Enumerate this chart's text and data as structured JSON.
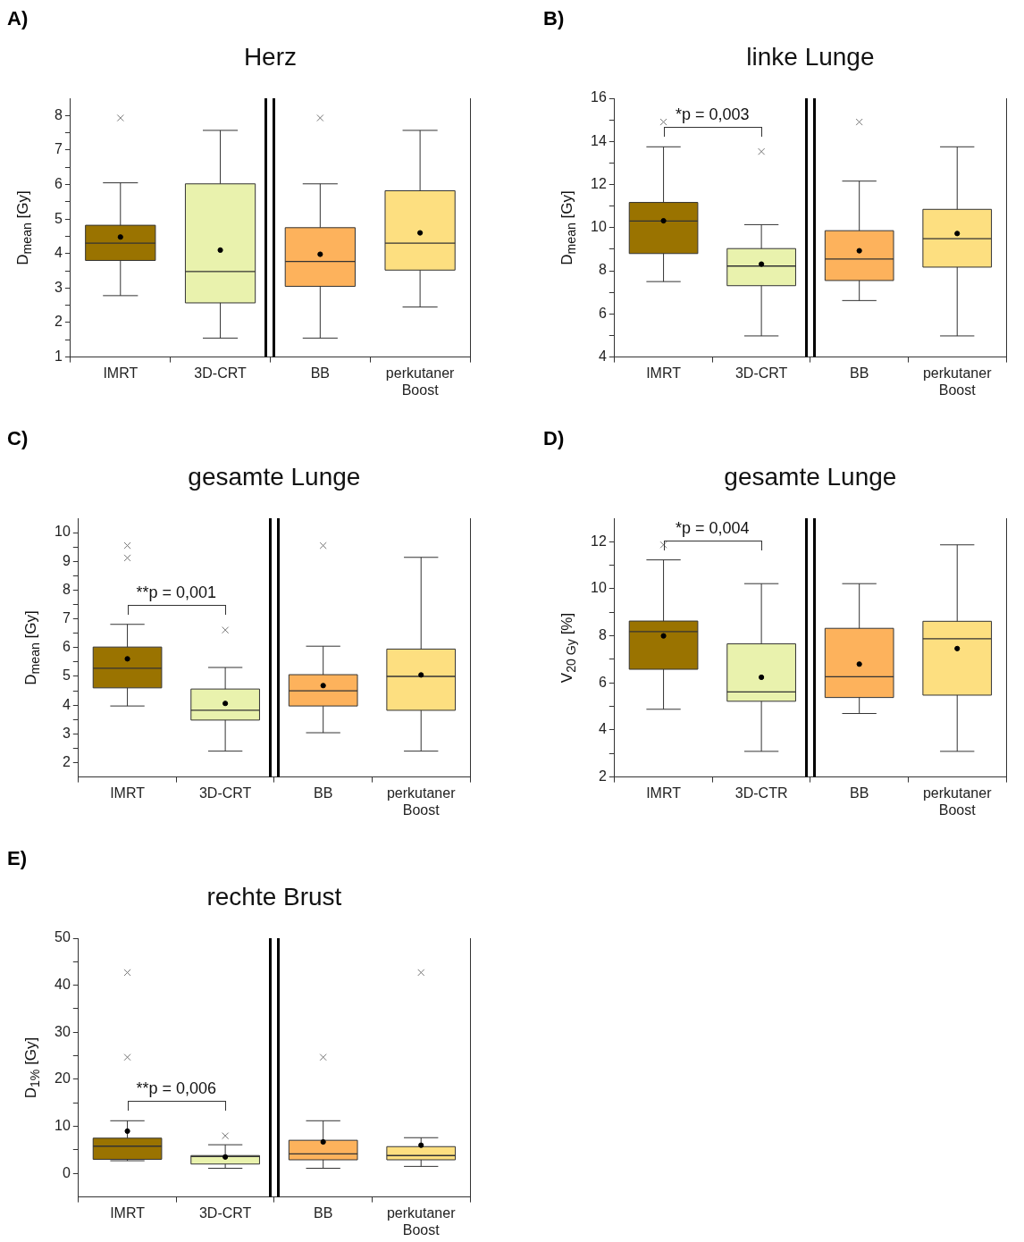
{
  "chart_data": [
    {
      "type": "box",
      "title": "Herz",
      "ylabel": "D$_{mean}$ [Gy]",
      "annotations": [
        "A)"
      ],
      "categories": [
        "IMRT",
        "3D-CRT",
        "BB",
        "perkutaner Boost"
      ],
      "colors": [
        "#9a7300",
        "#e9f2ad",
        "#fdb25c",
        "#fddf80"
      ],
      "boxes": [
        {
          "low": 2.78,
          "q1": 3.8,
          "median": 4.3,
          "q3": 4.82,
          "high": 6.05,
          "mean": 4.48,
          "outliers": [
            7.93
          ]
        },
        {
          "low": 1.55,
          "q1": 2.57,
          "median": 3.48,
          "q3": 6.02,
          "high": 7.57,
          "mean": 4.1
        },
        {
          "low": 1.55,
          "q1": 3.05,
          "median": 3.77,
          "q3": 4.75,
          "high": 6.02,
          "mean": 3.98,
          "outliers": [
            7.93
          ]
        },
        {
          "low": 2.45,
          "q1": 3.52,
          "median": 4.3,
          "q3": 5.82,
          "high": 7.57,
          "mean": 4.6
        }
      ],
      "ylim": [
        1,
        8.5
      ],
      "yticks": [
        1,
        {
          "value": 1.5,
          "label": null
        },
        2,
        {
          "value": 2.5,
          "label": null
        },
        3,
        {
          "value": 3.5,
          "label": null
        },
        4,
        {
          "value": 4.5,
          "label": null
        },
        5,
        {
          "value": 5.5,
          "label": null
        },
        6,
        {
          "value": 6.5,
          "label": null
        },
        7,
        {
          "value": 7.5,
          "label": null
        },
        8
      ]
    },
    {
      "type": "box",
      "title": "linke Lunge",
      "ylabel": "D$_{mean}$ [Gy]",
      "annotations": [
        "B)",
        "*p = 0,003"
      ],
      "categories": [
        "IMRT",
        "3D-CRT",
        "BB",
        "perkutaner Boost"
      ],
      "colors": [
        "#9a7300",
        "#e9f2ad",
        "#fdb25c",
        "#fddf80"
      ],
      "boxes": [
        {
          "low": 7.5,
          "q1": 8.8,
          "median": 10.31,
          "q3": 11.17,
          "high": 13.75,
          "mean": 10.32,
          "outliers": [
            14.9
          ]
        },
        {
          "low": 4.98,
          "q1": 7.31,
          "median": 8.22,
          "q3": 9.03,
          "high": 10.14,
          "mean": 8.31,
          "outliers": [
            13.53
          ]
        },
        {
          "low": 6.62,
          "q1": 7.55,
          "median": 8.55,
          "q3": 9.86,
          "high": 12.16,
          "mean": 8.93,
          "outliers": [
            14.9
          ]
        },
        {
          "low": 4.98,
          "q1": 8.17,
          "median": 9.49,
          "q3": 10.85,
          "high": 13.75,
          "mean": 9.73
        }
      ],
      "ylim": [
        4,
        16
      ],
      "yticks": [
        4,
        {
          "value": 5,
          "label": null
        },
        6,
        {
          "value": 7,
          "label": null
        },
        8,
        {
          "value": 9,
          "label": null
        },
        10,
        {
          "value": 11,
          "label": null
        },
        12,
        {
          "value": 13,
          "label": null
        },
        14,
        {
          "value": 15,
          "label": null
        },
        16
      ]
    },
    {
      "type": "box",
      "title": "gesamte Lunge",
      "ylabel": "D$_{mean}$ [Gy]",
      "annotations": [
        "C)",
        "**p = 0,001"
      ],
      "categories": [
        "IMRT",
        "3D-CRT",
        "BB",
        "perkutaner Boost"
      ],
      "colors": [
        "#9a7300",
        "#e9f2ad",
        "#fdb25c",
        "#fddf80"
      ],
      "boxes": [
        {
          "low": 3.97,
          "q1": 4.6,
          "median": 5.28,
          "q3": 6.02,
          "high": 6.81,
          "mean": 5.61,
          "outliers": [
            9.55,
            9.12
          ]
        },
        {
          "low": 2.4,
          "q1": 3.48,
          "median": 3.82,
          "q3": 4.56,
          "high": 5.31,
          "mean": 4.06,
          "outliers": [
            6.61
          ]
        },
        {
          "low": 3.04,
          "q1": 3.97,
          "median": 4.5,
          "q3": 5.06,
          "high": 6.05,
          "mean": 4.68,
          "outliers": [
            9.55
          ]
        },
        {
          "low": 2.4,
          "q1": 3.82,
          "median": 5.0,
          "q3": 5.95,
          "high": 9.14,
          "mean": 5.05
        }
      ],
      "ylim": [
        1.5,
        10.5
      ],
      "yticks": [
        2,
        {
          "value": 2.5,
          "label": null
        },
        3,
        {
          "value": 3.5,
          "label": null
        },
        4,
        {
          "value": 4.5,
          "label": null
        },
        5,
        {
          "value": 5.5,
          "label": null
        },
        6,
        {
          "value": 6.5,
          "label": null
        },
        7,
        {
          "value": 7.5,
          "label": null
        },
        8,
        {
          "value": 8.5,
          "label": null
        },
        9,
        {
          "value": 9.5,
          "label": null
        },
        10
      ]
    },
    {
      "type": "box",
      "title": "gesamte Lunge",
      "ylabel": "V$_{20 Gy}$ [%]",
      "annotations": [
        "D)",
        "*p = 0,004"
      ],
      "categories": [
        "IMRT",
        "3D-CTR",
        "BB",
        "perkutaner Boost"
      ],
      "colors": [
        "#9a7300",
        "#e9f2ad",
        "#fdb25c",
        "#fddf80"
      ],
      "boxes": [
        {
          "low": 4.88,
          "q1": 6.58,
          "median": 8.18,
          "q3": 8.63,
          "high": 11.23,
          "mean": 8.0,
          "outliers": [
            11.87
          ]
        },
        {
          "low": 3.09,
          "q1": 5.22,
          "median": 5.62,
          "q3": 7.66,
          "high": 10.22,
          "mean": 6.24
        },
        {
          "low": 4.7,
          "q1": 5.38,
          "median": 6.26,
          "q3": 8.32,
          "high": 10.22,
          "mean": 6.8
        },
        {
          "low": 3.09,
          "q1": 5.48,
          "median": 7.88,
          "q3": 8.62,
          "high": 11.87,
          "mean": 7.46
        }
      ],
      "ylim": [
        2,
        13
      ],
      "yticks": [
        2,
        {
          "value": 3,
          "label": null
        },
        4,
        {
          "value": 5,
          "label": null
        },
        6,
        {
          "value": 7,
          "label": null
        },
        8,
        {
          "value": 9,
          "label": null
        },
        10,
        {
          "value": 11,
          "label": null
        },
        12
      ]
    },
    {
      "type": "box",
      "title": "rechte Brust",
      "ylabel": "D$_{1%}$ [Gy]",
      "annotations": [
        "E)",
        "**p = 0,006"
      ],
      "categories": [
        "IMRT",
        "3D-CRT",
        "BB",
        "perkutaner Boost"
      ],
      "colors": [
        "#9a7300",
        "#e9f2ad",
        "#fdb25c",
        "#fddf80"
      ],
      "boxes": [
        {
          "low": 2.7,
          "q1": 3.0,
          "median": 5.8,
          "q3": 7.5,
          "high": 11.2,
          "mean": 9.0,
          "outliers": [
            42.7,
            24.7
          ]
        },
        {
          "low": 1.1,
          "q1": 2.0,
          "median": 3.6,
          "q3": 3.8,
          "high": 6.1,
          "mean": 3.5,
          "outliers": [
            8.0
          ]
        },
        {
          "low": 1.1,
          "q1": 2.9,
          "median": 4.15,
          "q3": 7.05,
          "high": 11.2,
          "mean": 6.7,
          "outliers": [
            24.7
          ]
        },
        {
          "low": 1.5,
          "q1": 2.9,
          "median": 3.8,
          "q3": 5.7,
          "high": 7.6,
          "mean": 6.0,
          "outliers": [
            42.7
          ]
        }
      ],
      "ylim": [
        -5,
        50
      ],
      "yticks": [
        0,
        {
          "value": 5,
          "label": null
        },
        10,
        {
          "value": 15,
          "label": null
        },
        20,
        {
          "value": 25,
          "label": null
        },
        30,
        {
          "value": 35,
          "label": null
        },
        40,
        {
          "value": 45,
          "label": null
        },
        50
      ]
    }
  ]
}
